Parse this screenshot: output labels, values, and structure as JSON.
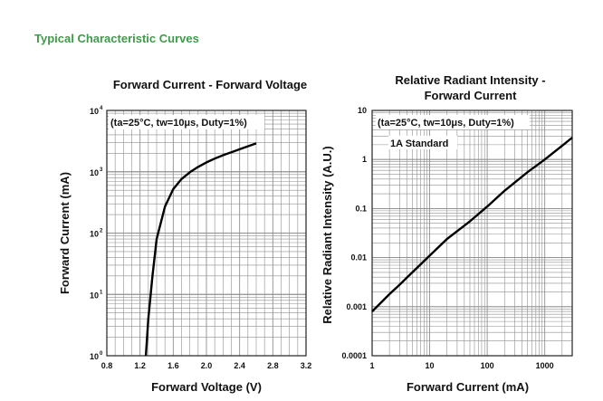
{
  "section_title": "Typical Characteristic Curves",
  "chart_data": [
    {
      "type": "line",
      "title": "Forward Current - Forward Voltage",
      "xlabel": "Forward Voltage (V)",
      "ylabel": "Forward Current (mA)",
      "xlim": [
        0.8,
        3.2
      ],
      "ylim": [
        1,
        10000
      ],
      "x_scale": "linear",
      "y_scale": "log",
      "grid": true,
      "annotation": "(ta=25°C, tw=10μs, Duty=1%)",
      "x_ticks": [
        "0.8",
        "1.2",
        "1.6",
        "2.0",
        "2.4",
        "2.8",
        "3.2"
      ],
      "y_ticks": [
        {
          "base": "10",
          "exp": "0"
        },
        {
          "base": "10",
          "exp": "1"
        },
        {
          "base": "10",
          "exp": "2"
        },
        {
          "base": "10",
          "exp": "3"
        },
        {
          "base": "10",
          "exp": "4"
        }
      ],
      "series": [
        {
          "x": [
            1.27,
            1.3,
            1.35,
            1.4,
            1.5,
            1.6,
            1.7,
            1.8,
            1.9,
            2.0,
            2.1,
            2.2,
            2.3,
            2.4,
            2.5,
            2.6
          ],
          "y": [
            1,
            4,
            20,
            80,
            270,
            520,
            760,
            980,
            1200,
            1420,
            1640,
            1860,
            2080,
            2330,
            2600,
            2900
          ]
        }
      ]
    },
    {
      "type": "line",
      "title": "Relative Radiant Intensity -\nForward Current",
      "title_lines": [
        "Relative Radiant Intensity -",
        "Forward Current"
      ],
      "xlabel": "Forward Current (mA)",
      "ylabel": "Relative Radiant Intensity (A.U.)",
      "xlim": [
        1,
        3000
      ],
      "ylim": [
        0.0001,
        10
      ],
      "x_scale": "log",
      "y_scale": "log",
      "grid": true,
      "annotation": "(ta=25°C, tw=10μs, Duty=1%)",
      "annotation2": "1A Standard",
      "x_ticks": [
        "1",
        "10",
        "100",
        "1000"
      ],
      "y_ticks": [
        "0.0001",
        "0.001",
        "0.01",
        "0.1",
        "1",
        "10"
      ],
      "series": [
        {
          "x": [
            1,
            2,
            3,
            5,
            10,
            20,
            50,
            100,
            200,
            500,
            1000,
            2000,
            3000
          ],
          "y": [
            0.0008,
            0.0018,
            0.0028,
            0.005,
            0.011,
            0.024,
            0.055,
            0.11,
            0.23,
            0.55,
            1.0,
            1.9,
            2.8
          ]
        }
      ]
    }
  ]
}
